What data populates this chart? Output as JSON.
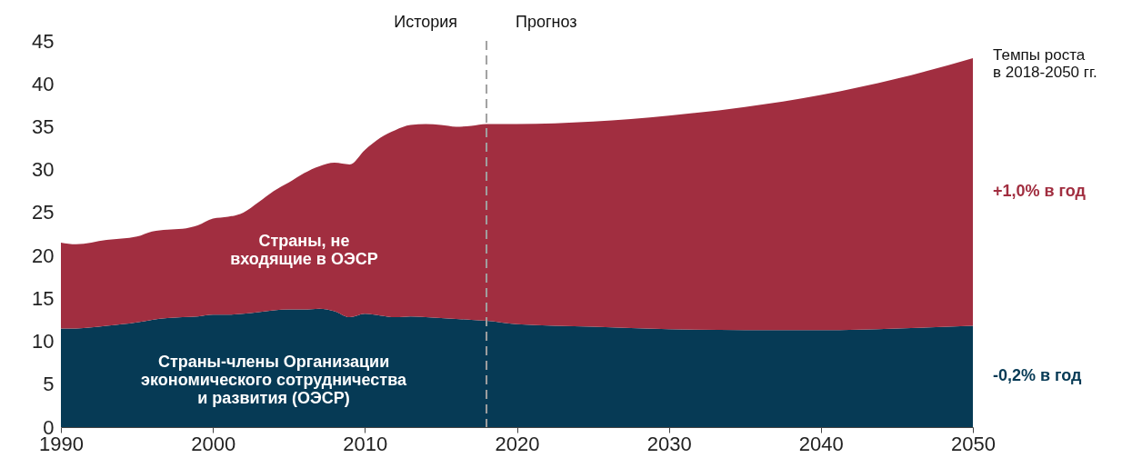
{
  "chart_data": {
    "type": "area",
    "stacked": true,
    "x": [
      1990,
      1991,
      1993,
      1995,
      1996,
      1997,
      1998,
      1999,
      2000,
      2001,
      2002,
      2003,
      2004,
      2005,
      2006,
      2007,
      2008,
      2009,
      2010,
      2011,
      2012,
      2013,
      2014,
      2015,
      2016,
      2017,
      2018,
      2020,
      2025,
      2030,
      2035,
      2040,
      2045,
      2050
    ],
    "series": [
      {
        "name": "Страны-члены Организации\nэкономического сотрудничества\nи развития (ОЭСР)",
        "color": "#063a55",
        "values": [
          11.5,
          11.5,
          11.8,
          12.2,
          12.5,
          12.7,
          12.8,
          12.9,
          13.1,
          13.1,
          13.2,
          13.4,
          13.6,
          13.7,
          13.7,
          13.8,
          13.5,
          12.8,
          13.2,
          13.0,
          12.8,
          12.9,
          12.8,
          12.7,
          12.6,
          12.5,
          12.4,
          12.0,
          11.7,
          11.4,
          11.3,
          11.3,
          11.5,
          11.8
        ]
      },
      {
        "name": "Страны, не\nвходящие в ОЭСР",
        "color": "#a12e40",
        "values": [
          10.0,
          9.8,
          10.0,
          10.0,
          10.3,
          10.3,
          10.3,
          10.6,
          11.2,
          11.4,
          11.8,
          12.8,
          13.9,
          14.8,
          15.9,
          16.6,
          17.3,
          17.8,
          19.1,
          20.7,
          21.8,
          22.3,
          22.5,
          22.5,
          22.4,
          22.6,
          22.9,
          23.3,
          23.9,
          24.9,
          26.0,
          27.4,
          29.1,
          31.2
        ]
      }
    ],
    "xlim": [
      1990,
      2050
    ],
    "xticks": [
      1990,
      2000,
      2010,
      2020,
      2030,
      2040,
      2050
    ],
    "ylim": [
      0,
      45
    ],
    "yticks": [
      0,
      5,
      10,
      15,
      20,
      25,
      30,
      35,
      40,
      45
    ],
    "grid": false,
    "ref_lines": [
      {
        "axis": "x",
        "value": 2018,
        "color": "#a0a0a0",
        "line_style": "dashed"
      }
    ],
    "annotations": [
      "История",
      "Прогноз",
      "Темпы роста\nв 2018-2050 гг.",
      "-0,2% в год",
      "+1,0% в год"
    ]
  }
}
